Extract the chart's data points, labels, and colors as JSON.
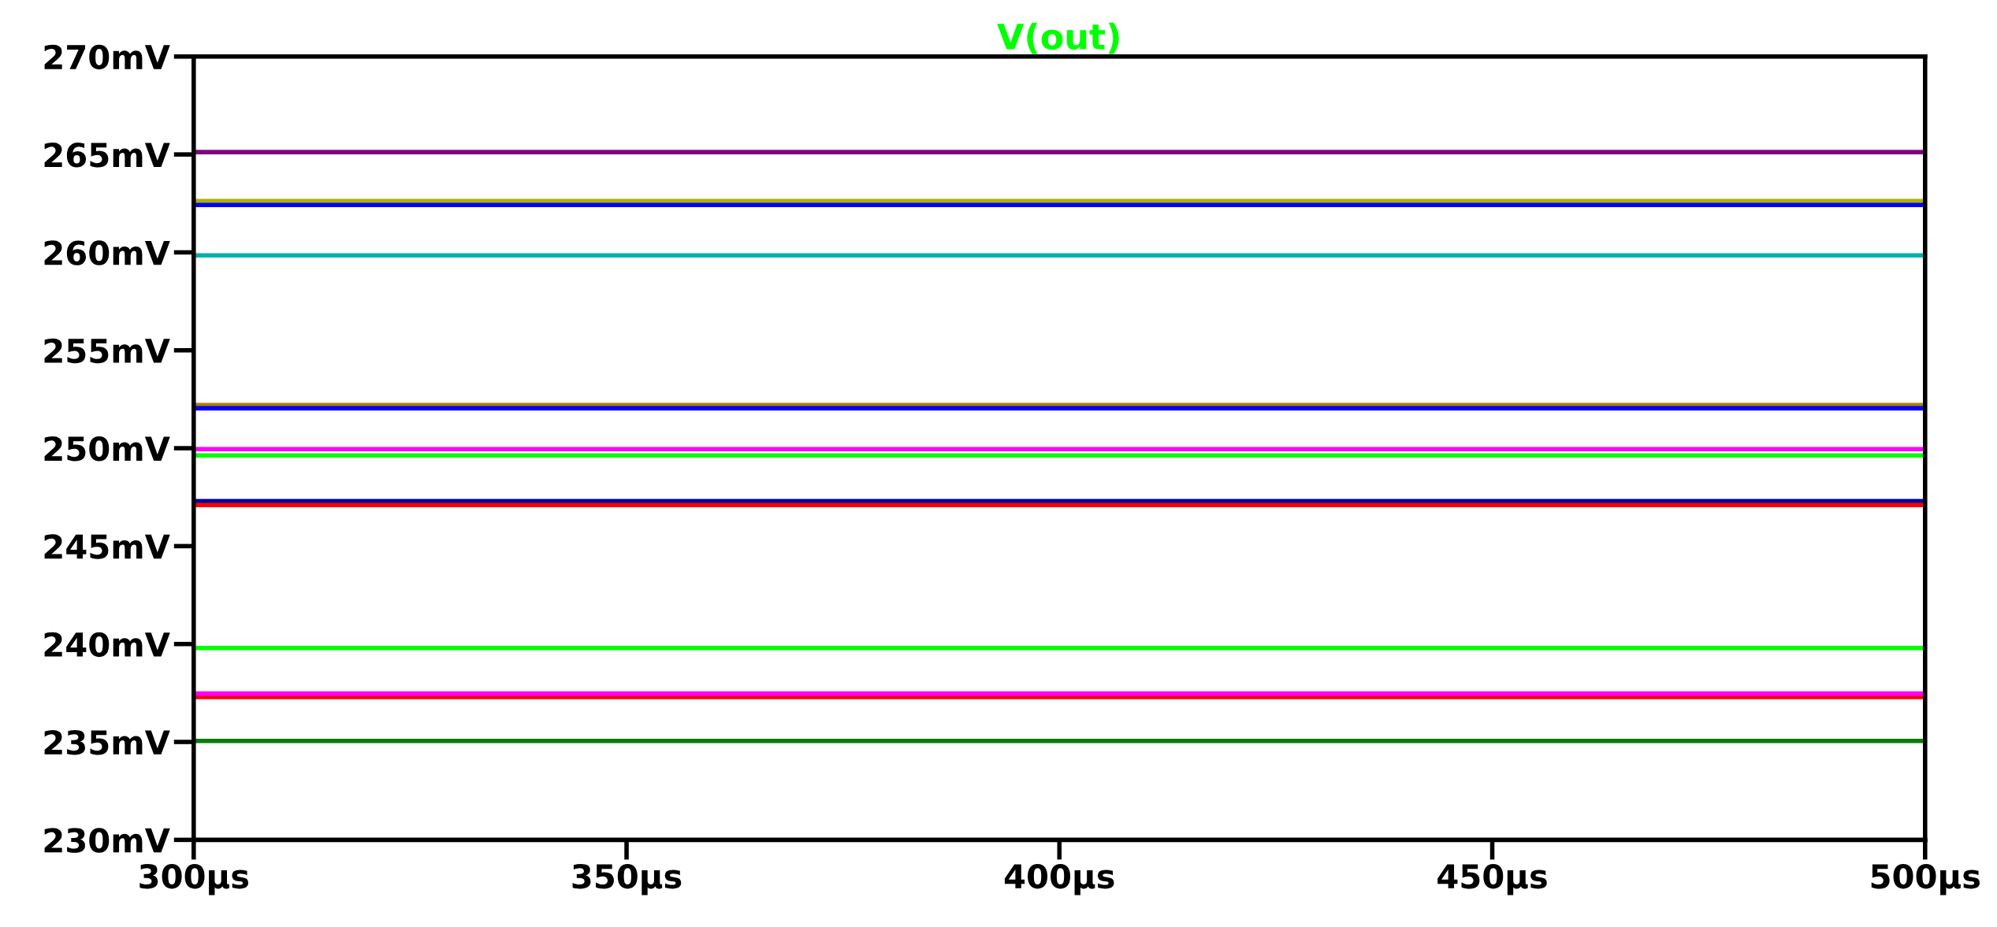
{
  "chart_data": {
    "type": "line",
    "title": "V(out)",
    "x": [
      300,
      500
    ],
    "series": [
      {
        "color": "#800080",
        "values": [
          265.12,
          265.12
        ]
      },
      {
        "color": "#b0b000",
        "values": [
          262.62,
          262.62
        ]
      },
      {
        "color": "#0000ff",
        "values": [
          262.42,
          262.42
        ]
      },
      {
        "color": "#00b0b0",
        "values": [
          259.85,
          259.85
        ]
      },
      {
        "color": "#b08000",
        "values": [
          252.2,
          252.2
        ]
      },
      {
        "color": "#0000ff",
        "values": [
          252.04,
          252.04
        ]
      },
      {
        "color": "#ff00ff",
        "values": [
          249.95,
          249.95
        ]
      },
      {
        "color": "#00ff00",
        "values": [
          249.63,
          249.63
        ]
      },
      {
        "color": "#0000a0",
        "values": [
          247.3,
          247.3
        ]
      },
      {
        "color": "#ff0000",
        "values": [
          247.1,
          247.1
        ]
      },
      {
        "color": "#00ff00",
        "values": [
          239.8,
          239.8
        ]
      },
      {
        "color": "#ff0000",
        "values": [
          237.3,
          237.3
        ]
      },
      {
        "color": "#ff00ff",
        "values": [
          237.47,
          237.47
        ]
      },
      {
        "color": "#007f00",
        "values": [
          235.05,
          235.05
        ]
      }
    ],
    "xlim": [
      300,
      500
    ],
    "ylim": [
      230,
      270
    ],
    "xticks": [
      {
        "value": 300,
        "label": "300µs"
      },
      {
        "value": 350,
        "label": "350µs"
      },
      {
        "value": 400,
        "label": "400µs"
      },
      {
        "value": 450,
        "label": "450µs"
      },
      {
        "value": 500,
        "label": "500µs"
      }
    ],
    "yticks": [
      {
        "value": 230,
        "label": "230mV"
      },
      {
        "value": 235,
        "label": "235mV"
      },
      {
        "value": 240,
        "label": "240mV"
      },
      {
        "value": 245,
        "label": "245mV"
      },
      {
        "value": 250,
        "label": "250mV"
      },
      {
        "value": 255,
        "label": "255mV"
      },
      {
        "value": 260,
        "label": "260mV"
      },
      {
        "value": 265,
        "label": "265mV"
      },
      {
        "value": 270,
        "label": "270mV"
      }
    ],
    "grid": false,
    "legend": false,
    "marker": "none",
    "line_style": "solid"
  }
}
